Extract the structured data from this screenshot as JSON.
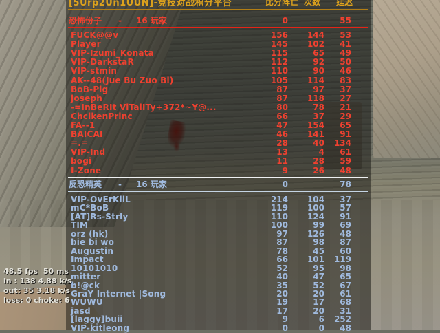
{
  "server_title": "[5Urp2Un1UUN]-竞技对战积分平台",
  "scoreboard": {
    "column_headers": [
      "比分阵亡",
      "次数",
      "延迟"
    ],
    "teams": [
      {
        "name": "恐怖份子",
        "dash": "-",
        "player_count": "16 玩家",
        "score": "0",
        "latency": "55",
        "text_color": "#ef4130",
        "players": [
          {
            "name": "FUCK@@v",
            "score": "156",
            "deaths": "144",
            "latency": "53"
          },
          {
            "name": "Player",
            "score": "145",
            "deaths": "102",
            "latency": "41"
          },
          {
            "name": "VIP-Izumi_Konata",
            "score": "115",
            "deaths": "65",
            "latency": "49"
          },
          {
            "name": "VIP-DarkstaR",
            "score": "112",
            "deaths": "92",
            "latency": "50"
          },
          {
            "name": "VIP-stmin",
            "score": "110",
            "deaths": "90",
            "latency": "46"
          },
          {
            "name": "AK--48(Jue Bu Zuo Bi)",
            "score": "105",
            "deaths": "114",
            "latency": "83"
          },
          {
            "name": "BoB-Pig",
            "score": "87",
            "deaths": "97",
            "latency": "37"
          },
          {
            "name": "joseph",
            "score": "87",
            "deaths": "118",
            "latency": "27"
          },
          {
            "name": "-=InBeRIt ViTalITy+372*~Y@...",
            "score": "80",
            "deaths": "78",
            "latency": "21"
          },
          {
            "name": "ChcikenPrinc",
            "score": "66",
            "deaths": "37",
            "latency": "29"
          },
          {
            "name": "FA--1",
            "score": "47",
            "deaths": "154",
            "latency": "65"
          },
          {
            "name": "BAICAI",
            "score": "46",
            "deaths": "141",
            "latency": "91"
          },
          {
            "name": "=.=",
            "score": "28",
            "deaths": "40",
            "latency": "134"
          },
          {
            "name": "VIP-Ind",
            "score": "13",
            "deaths": "4",
            "latency": "61"
          },
          {
            "name": "bogi",
            "score": "11",
            "deaths": "28",
            "latency": "59"
          },
          {
            "name": "I-Zone",
            "score": "9",
            "deaths": "26",
            "latency": "48"
          }
        ]
      },
      {
        "name": "反恐精英",
        "dash": "-",
        "player_count": "16 玩家",
        "score": "0",
        "latency": "78",
        "text_color": "#a0bade",
        "players": [
          {
            "name": "VIP-OvErKilL",
            "score": "214",
            "deaths": "104",
            "latency": "37"
          },
          {
            "name": "mC*BoB",
            "score": "119",
            "deaths": "100",
            "latency": "57"
          },
          {
            "name": "[AT]Rs-Strly",
            "score": "110",
            "deaths": "124",
            "latency": "91"
          },
          {
            "name": "TIM",
            "score": "100",
            "deaths": "99",
            "latency": "69"
          },
          {
            "name": "orz  (hk)",
            "score": "97",
            "deaths": "126",
            "latency": "48"
          },
          {
            "name": "bie  bi  wo",
            "score": "87",
            "deaths": "98",
            "latency": "87"
          },
          {
            "name": "Augustin",
            "score": "78",
            "deaths": "45",
            "latency": "60"
          },
          {
            "name": "Impact",
            "score": "66",
            "deaths": "101",
            "latency": "119"
          },
          {
            "name": "10101010",
            "score": "52",
            "deaths": "95",
            "latency": "98"
          },
          {
            "name": "mitter",
            "score": "40",
            "deaths": "47",
            "latency": "65"
          },
          {
            "name": "b!@ck",
            "score": "35",
            "deaths": "52",
            "latency": "67"
          },
          {
            "name": "GraY Internet |Song",
            "score": "20",
            "deaths": "20",
            "latency": "61"
          },
          {
            "name": "WUWU",
            "score": "19",
            "deaths": "17",
            "latency": "68"
          },
          {
            "name": "jasd",
            "score": "17",
            "deaths": "20",
            "latency": "31"
          },
          {
            "name": "[laggy]buii",
            "score": "9",
            "deaths": "6",
            "latency": "252"
          },
          {
            "name": "VIP-kitleong",
            "score": "0",
            "deaths": "0",
            "latency": "48"
          }
        ]
      }
    ]
  },
  "net_graph": {
    "fps": "48.5 fps",
    "latency": "50 ms",
    "line_in": "in :  138 4.88 k/s",
    "line_out": "out:  35 3.18 k/s",
    "line_loss": "loss: 0 choke:  6"
  },
  "colors": {
    "hud_orange": "#dda21d",
    "terrorist_red": "#ef4130",
    "ct_blue": "#a0bade",
    "divider_red": "#e42417",
    "divider_white": "#eef0f2",
    "divider_blue": "#c4d4e4"
  }
}
